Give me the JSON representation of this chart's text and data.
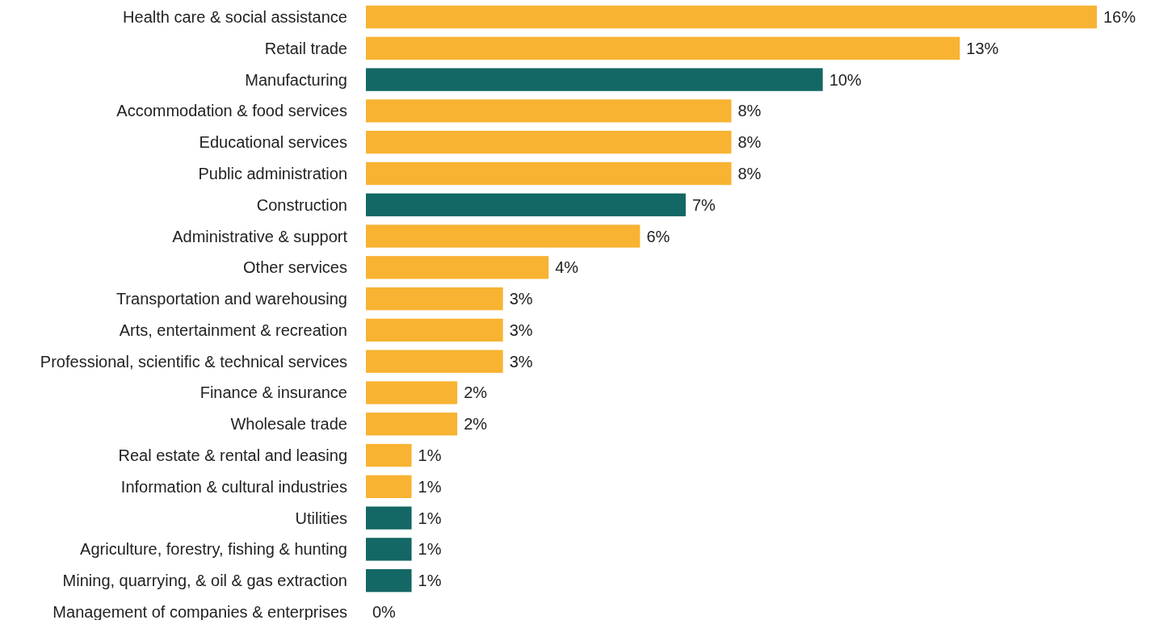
{
  "chart_data": {
    "type": "bar",
    "orientation": "horizontal",
    "categories": [
      "Health care & social assistance",
      "Retail trade",
      "Manufacturing",
      "Accommodation & food services",
      "Educational services",
      "Public administration",
      "Construction",
      "Administrative & support",
      "Other services",
      "Transportation and warehousing",
      "Arts, entertainment & recreation",
      "Professional, scientific & technical services",
      "Finance & insurance",
      "Wholesale trade",
      "Real estate & rental and leasing",
      "Information & cultural industries",
      "Utilities",
      "Agriculture, forestry, fishing & hunting",
      "Mining, quarrying, & oil & gas extraction",
      "Management of companies & enterprises"
    ],
    "values": [
      16,
      13,
      10,
      8,
      8,
      8,
      7,
      6,
      4,
      3,
      3,
      3,
      2,
      2,
      1,
      1,
      1,
      1,
      1,
      0
    ],
    "value_labels": [
      "16%",
      "13%",
      "10%",
      "8%",
      "8%",
      "8%",
      "7%",
      "6%",
      "4%",
      "3%",
      "3%",
      "3%",
      "2%",
      "2%",
      "1%",
      "1%",
      "1%",
      "1%",
      "1%",
      "0%"
    ],
    "colors": [
      "#f8b332",
      "#f8b332",
      "#136764",
      "#f8b332",
      "#f8b332",
      "#f8b332",
      "#136764",
      "#f8b332",
      "#f8b332",
      "#f8b332",
      "#f8b332",
      "#f8b332",
      "#f8b332",
      "#f8b332",
      "#f8b332",
      "#f8b332",
      "#136764",
      "#136764",
      "#136764",
      "#f8b332"
    ],
    "tick_labels": "y"
  }
}
